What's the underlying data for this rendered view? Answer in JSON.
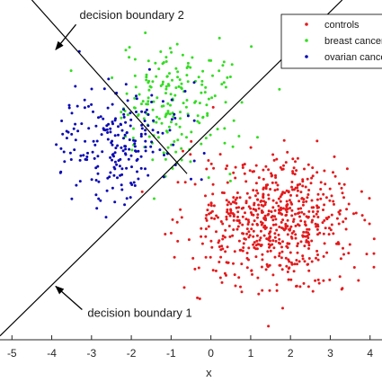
{
  "chart_data": {
    "type": "scatter",
    "xlabel": "x",
    "ylabel": "",
    "xlim": [
      -5.3,
      4.3
    ],
    "ylim": [
      -3.6,
      5.3
    ],
    "xticks": [
      "-5",
      "-4",
      "-3",
      "-2",
      "-1",
      "0",
      "1",
      "2",
      "3",
      "4"
    ],
    "grid": false,
    "legend_position": "top-right",
    "series": [
      {
        "name": "controls",
        "color": "#e41a1c",
        "count": 650,
        "center": [
          1.6,
          -0.5
        ],
        "spread": [
          1.0,
          0.85
        ]
      },
      {
        "name": "breast cancer",
        "color": "#33dd22",
        "count": 200,
        "center": [
          -1.0,
          2.5
        ],
        "spread": [
          0.8,
          0.8
        ]
      },
      {
        "name": "ovarian cancer",
        "color": "#0a0ab4",
        "count": 220,
        "center": [
          -2.3,
          1.6
        ],
        "spread": [
          0.75,
          0.75
        ]
      }
    ],
    "lines": [
      {
        "name": "decision boundary 1",
        "points": [
          [
            -5.3,
            -3.5
          ],
          [
            3.3,
            5.3
          ]
        ]
      },
      {
        "name": "decision boundary 2",
        "points": [
          [
            -4.5,
            5.3
          ],
          [
            -0.6,
            0.75
          ]
        ]
      }
    ],
    "annotations": [
      {
        "text": "decision boundary 2",
        "at": [
          -3.3,
          4.8
        ],
        "arrow_to": [
          -3.9,
          4.0
        ]
      },
      {
        "text": "decision boundary 1",
        "at": [
          -3.1,
          -3.0
        ],
        "arrow_to": [
          -3.9,
          -2.2
        ]
      }
    ]
  }
}
